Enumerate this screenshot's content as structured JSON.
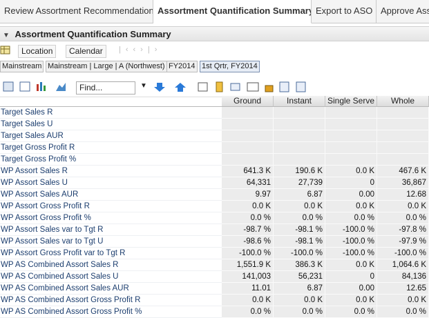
{
  "tabs": [
    "Review Assortment Recommendation",
    "Assortment Quantification Summary",
    "Export to ASO",
    "Approve Ass"
  ],
  "panel_title": "Assortment Quantification Summary",
  "toolbar": {
    "buttons": [
      "Location",
      "Calendar"
    ]
  },
  "breadcrumbs": [
    "Mainstream",
    "Mainstream | Large | A (Northwest)",
    "FY2014",
    "1st Qrtr, FY2014"
  ],
  "find_placeholder": "Find...",
  "table": {
    "columns": [
      "Ground",
      "Instant",
      "Single Serve",
      "Whole"
    ],
    "rows": [
      {
        "label": "Target Sales R"
      },
      {
        "label": "Target Sales U"
      },
      {
        "label": "Target Sales AUR"
      },
      {
        "label": "Target Gross Profit R"
      },
      {
        "label": "Target Gross Profit %"
      },
      {
        "label": "WP Assort Sales R",
        "cells": [
          "641.3 K",
          "190.6 K",
          "0.0 K",
          "467.6 K"
        ]
      },
      {
        "label": "WP Assort Sales U",
        "cells": [
          "64,331",
          "27,739",
          "0",
          "36,867"
        ]
      },
      {
        "label": "WP Assort Sales AUR",
        "cells": [
          "9.97",
          "6.87",
          "0.00",
          "12.68"
        ]
      },
      {
        "label": "WP Assort Gross Profit R",
        "cells": [
          "0.0 K",
          "0.0 K",
          "0.0 K",
          "0.0 K"
        ]
      },
      {
        "label": "WP Assort Gross Profit %",
        "cells": [
          "0.0 %",
          "0.0 %",
          "0.0 %",
          "0.0 %"
        ]
      },
      {
        "label": "WP Assort Sales var to Tgt R",
        "cells": [
          "-98.7 %",
          "-98.1 %",
          "-100.0 %",
          "-97.8 %"
        ]
      },
      {
        "label": "WP Assort Sales var to Tgt U",
        "cells": [
          "-98.6 %",
          "-98.1 %",
          "-100.0 %",
          "-97.9 %"
        ]
      },
      {
        "label": "WP Assort Gross Profit var to Tgt R",
        "cells": [
          "-100.0 %",
          "-100.0 %",
          "-100.0 %",
          "-100.0 %"
        ]
      },
      {
        "label": "WP AS Combined Assort Sales R",
        "cells": [
          "1,551.9 K",
          "386.3 K",
          "0.0 K",
          "1,064.6 K"
        ]
      },
      {
        "label": "WP AS Combined Assort Sales U",
        "cells": [
          "141,003",
          "56,231",
          "0",
          "84,136"
        ]
      },
      {
        "label": "WP AS Combined Assort Sales AUR",
        "cells": [
          "11.01",
          "6.87",
          "0.00",
          "12.65"
        ]
      },
      {
        "label": "WP AS Combined Assort Gross Profit R",
        "cells": [
          "0.0 K",
          "0.0 K",
          "0.0 K",
          "0.0 K"
        ]
      },
      {
        "label": "WP AS Combined Assort Gross Profit %",
        "cells": [
          "0.0 %",
          "0.0 %",
          "0.0 %",
          "0.0 %"
        ]
      }
    ]
  }
}
